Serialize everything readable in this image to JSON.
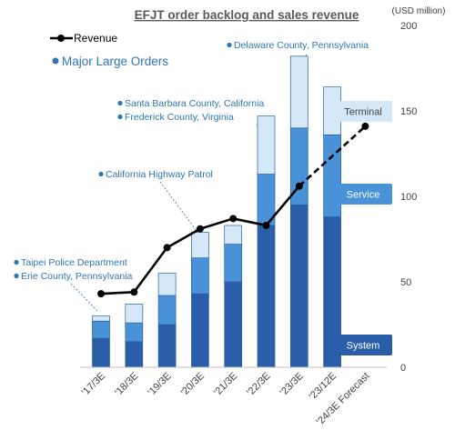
{
  "chart_data": {
    "type": "bar",
    "title": "EFJT order backlog and sales revenue",
    "unit_label": "(USD million)",
    "categories": [
      "'17/3E",
      "'18/3E",
      "'19/3E",
      "'20/3E",
      "'21/3E",
      "'22/3E",
      "'23/3E",
      "'23/12E",
      "'24/3E Forecast"
    ],
    "series": [
      {
        "name": "System",
        "kind": "bar-stacked",
        "color": "#2b5ea8",
        "values": [
          17,
          15,
          25,
          43,
          50,
          83,
          95,
          88,
          null
        ]
      },
      {
        "name": "Service",
        "kind": "bar-stacked",
        "color": "#4a92d8",
        "values": [
          10,
          11,
          17,
          21,
          22,
          30,
          45,
          48,
          null
        ]
      },
      {
        "name": "Terminal",
        "kind": "bar-stacked",
        "color": "#d5e8f8",
        "values": [
          3,
          11,
          13,
          15,
          11,
          34,
          42,
          28,
          null
        ]
      },
      {
        "name": "Revenue",
        "kind": "line",
        "color": "#000000",
        "values": [
          43,
          44,
          70,
          81,
          87,
          83,
          106,
          null,
          141
        ],
        "dashed_from_index": 6
      }
    ],
    "ylim": [
      0,
      200
    ],
    "yticks": [
      0,
      50,
      100,
      150,
      200
    ],
    "y_axis_side": "right",
    "grid": false,
    "legend_placement": "top-left",
    "section_label": "Major Large Orders",
    "series_labels": [
      "Terminal",
      "Service",
      "System"
    ],
    "order_annotations": [
      {
        "text": "Taipei Police Department",
        "category_index": 0
      },
      {
        "text": "Erie County, Pennsylvania",
        "category_index": 0
      },
      {
        "text": "California Highway Patrol",
        "category_index": 3
      },
      {
        "text": "Santa Barbara County, California",
        "category_index": 5
      },
      {
        "text": "Frederick County, Virginia",
        "category_index": 5
      },
      {
        "text": "Delaware County, Pennsylvania",
        "category_index": 6
      }
    ]
  }
}
